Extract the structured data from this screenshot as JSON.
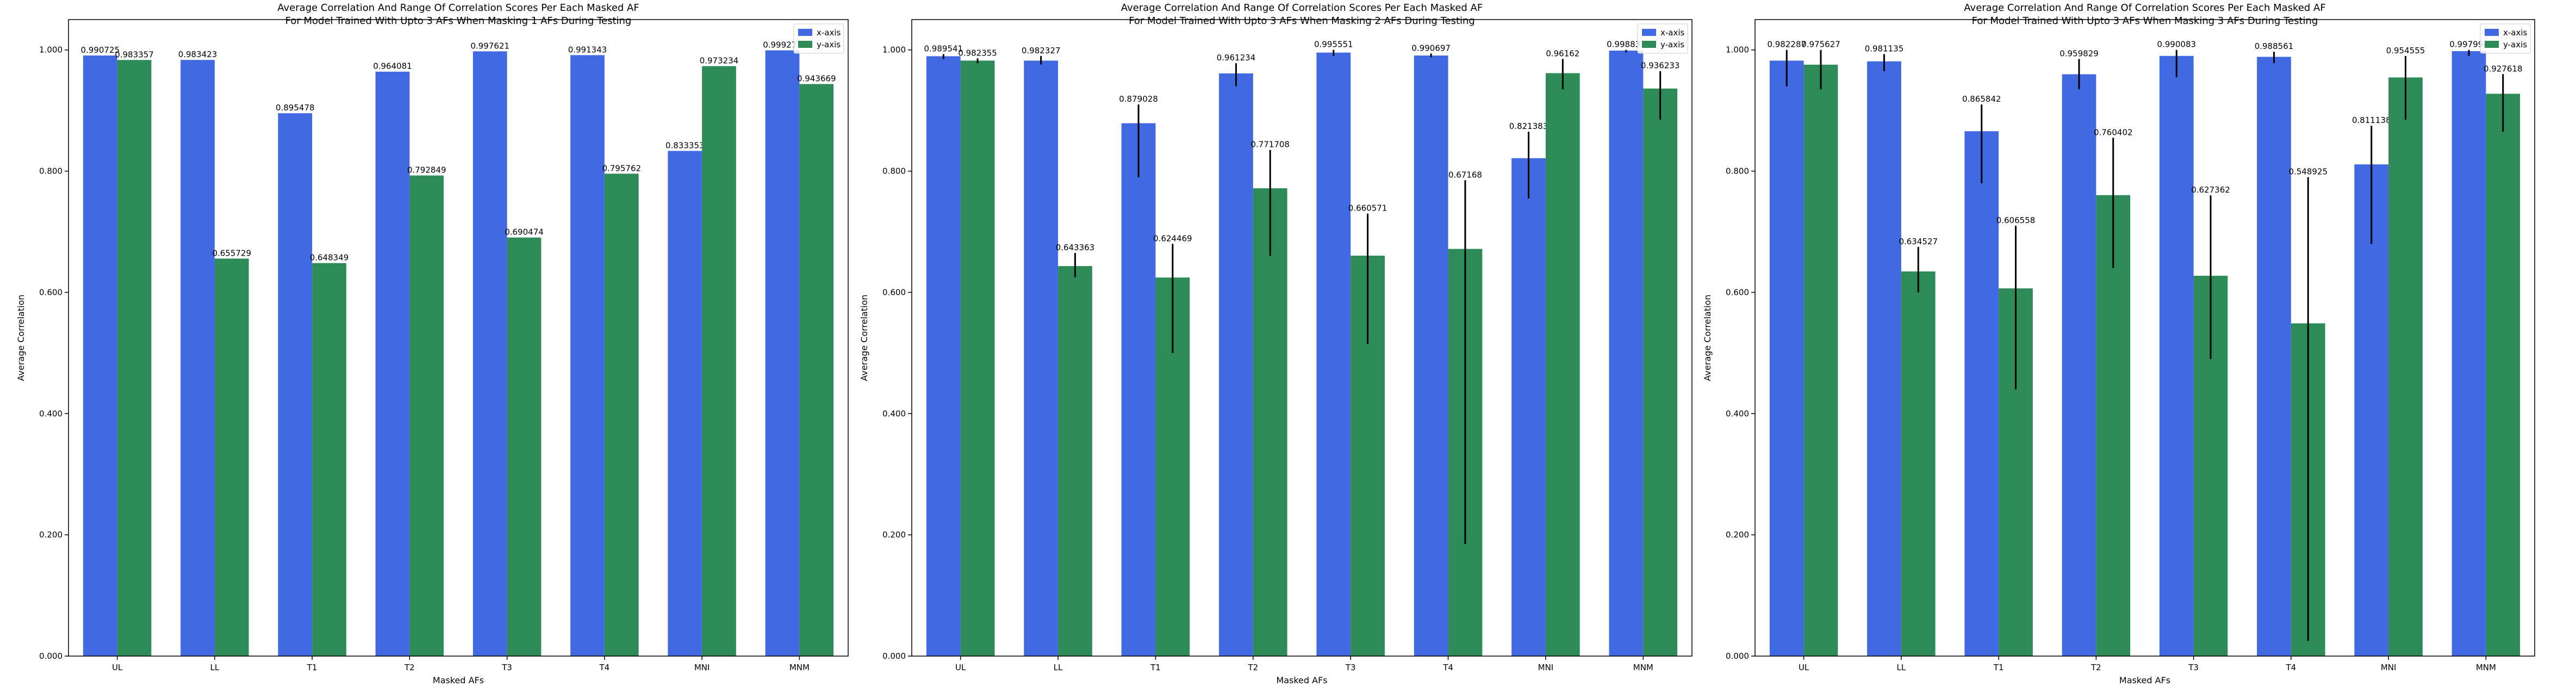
{
  "chart_data": [
    {
      "type": "bar",
      "title": "Average Correlation And Range Of Correlation Scores Per Each Masked AF",
      "subtitle": "For Model Trained With Upto 3 AFs When Masking 1 AFs During Testing",
      "xlabel": "Masked AFs",
      "ylabel": "Average Correlation",
      "ylim": [
        0,
        1.05
      ],
      "yticks": [
        "0.000",
        "0.200",
        "0.400",
        "0.600",
        "0.800",
        "1.000"
      ],
      "categories": [
        "UL",
        "LL",
        "T1",
        "T2",
        "T3",
        "T4",
        "MNI",
        "MNM"
      ],
      "legend": "top-right",
      "series": [
        {
          "name": "x-axis",
          "color": "#4169e1",
          "values": [
            0.990725,
            0.983423,
            0.895478,
            0.964081,
            0.997621,
            0.991343,
            0.833353,
            0.999277
          ],
          "labels": [
            "0.990725",
            "0.983423",
            "0.895478",
            "0.964081",
            "0.997621",
            "0.991343",
            "0.833353",
            "0.999277"
          ],
          "err_low": [
            0.990725,
            0.983423,
            0.895478,
            0.964081,
            0.997621,
            0.991343,
            0.833353,
            0.999277
          ],
          "err_high": [
            0.990725,
            0.983423,
            0.895478,
            0.964081,
            0.997621,
            0.991343,
            0.833353,
            0.999277
          ]
        },
        {
          "name": "y-axis",
          "color": "#2e8b57",
          "values": [
            0.983357,
            0.655729,
            0.648349,
            0.792849,
            0.690474,
            0.795762,
            0.973234,
            0.943669
          ],
          "labels": [
            "0.983357",
            "0.655729",
            "0.648349",
            "0.792849",
            "0.690474",
            "0.795762",
            "0.973234",
            "0.943669"
          ],
          "err_low": [
            0.983357,
            0.655729,
            0.648349,
            0.792849,
            0.690474,
            0.795762,
            0.973234,
            0.943669
          ],
          "err_high": [
            0.983357,
            0.655729,
            0.648349,
            0.792849,
            0.690474,
            0.795762,
            0.973234,
            0.943669
          ]
        }
      ]
    },
    {
      "type": "bar",
      "title": "Average Correlation And Range Of Correlation Scores Per Each Masked AF",
      "subtitle": "For Model Trained With Upto 3 AFs When Masking 2 AFs During Testing",
      "xlabel": "Masked AFs",
      "ylabel": "Average Correlation",
      "ylim": [
        0,
        1.05
      ],
      "yticks": [
        "0.000",
        "0.200",
        "0.400",
        "0.600",
        "0.800",
        "1.000"
      ],
      "categories": [
        "UL",
        "LL",
        "T1",
        "T2",
        "T3",
        "T4",
        "MNI",
        "MNM"
      ],
      "legend": "top-right",
      "series": [
        {
          "name": "x-axis",
          "color": "#4169e1",
          "values": [
            0.989541,
            0.982327,
            0.879028,
            0.961234,
            0.995551,
            0.990697,
            0.821383,
            0.998831
          ],
          "labels": [
            "0.989541",
            "0.982327",
            "0.879028",
            "0.961234",
            "0.995551",
            "0.990697",
            "0.821383",
            "0.998831"
          ],
          "err_low": [
            0.985,
            0.976,
            0.79,
            0.94,
            0.99,
            0.988,
            0.755,
            0.996
          ],
          "err_high": [
            0.993,
            0.99,
            0.91,
            0.978,
            1.0,
            0.994,
            0.865,
            1.0
          ]
        },
        {
          "name": "y-axis",
          "color": "#2e8b57",
          "values": [
            0.982355,
            0.643363,
            0.624469,
            0.771708,
            0.660571,
            0.67168,
            0.96162,
            0.936233
          ],
          "labels": [
            "0.982355",
            "0.643363",
            "0.624469",
            "0.771708",
            "0.660571",
            "0.67168",
            "0.96162",
            "0.936233"
          ],
          "err_low": [
            0.978,
            0.625,
            0.5,
            0.66,
            0.515,
            0.185,
            0.935,
            0.885
          ],
          "err_high": [
            0.986,
            0.665,
            0.68,
            0.835,
            0.73,
            0.785,
            0.985,
            0.965
          ]
        }
      ]
    },
    {
      "type": "bar",
      "title": "Average Correlation And Range Of Correlation Scores Per Each Masked AF",
      "subtitle": "For Model Trained With Upto 3 AFs When Masking 3 AFs During Testing",
      "xlabel": "Masked AFs",
      "ylabel": "Average Correlation",
      "ylim": [
        0,
        1.05
      ],
      "yticks": [
        "0.000",
        "0.200",
        "0.400",
        "0.600",
        "0.800",
        "1.000"
      ],
      "categories": [
        "UL",
        "LL",
        "T1",
        "T2",
        "T3",
        "T4",
        "MNI",
        "MNM"
      ],
      "legend": "top-right",
      "series": [
        {
          "name": "x-axis",
          "color": "#4169e1",
          "values": [
            0.982287,
            0.981135,
            0.865842,
            0.959829,
            0.990083,
            0.988561,
            0.811138,
            0.997994
          ],
          "labels": [
            "0.982287",
            "0.981135",
            "0.865842",
            "0.959829",
            "0.990083",
            "0.988561",
            "0.811138",
            "0.997994"
          ],
          "err_low": [
            0.94,
            0.965,
            0.78,
            0.935,
            0.955,
            0.978,
            0.68,
            0.99
          ],
          "err_high": [
            1.0,
            0.993,
            0.91,
            0.985,
            1.0,
            0.997,
            0.875,
            1.0
          ]
        },
        {
          "name": "y-axis",
          "color": "#2e8b57",
          "values": [
            0.975627,
            0.634527,
            0.606558,
            0.760402,
            0.627362,
            0.548925,
            0.954555,
            0.927618
          ],
          "labels": [
            "0.975627",
            "0.634527",
            "0.606558",
            "0.760402",
            "0.627362",
            "0.548925",
            "0.954555",
            "0.927618"
          ],
          "err_low": [
            0.935,
            0.6,
            0.44,
            0.64,
            0.49,
            0.025,
            0.885,
            0.865
          ],
          "err_high": [
            1.0,
            0.675,
            0.71,
            0.855,
            0.76,
            0.79,
            0.99,
            0.96
          ]
        }
      ]
    }
  ]
}
